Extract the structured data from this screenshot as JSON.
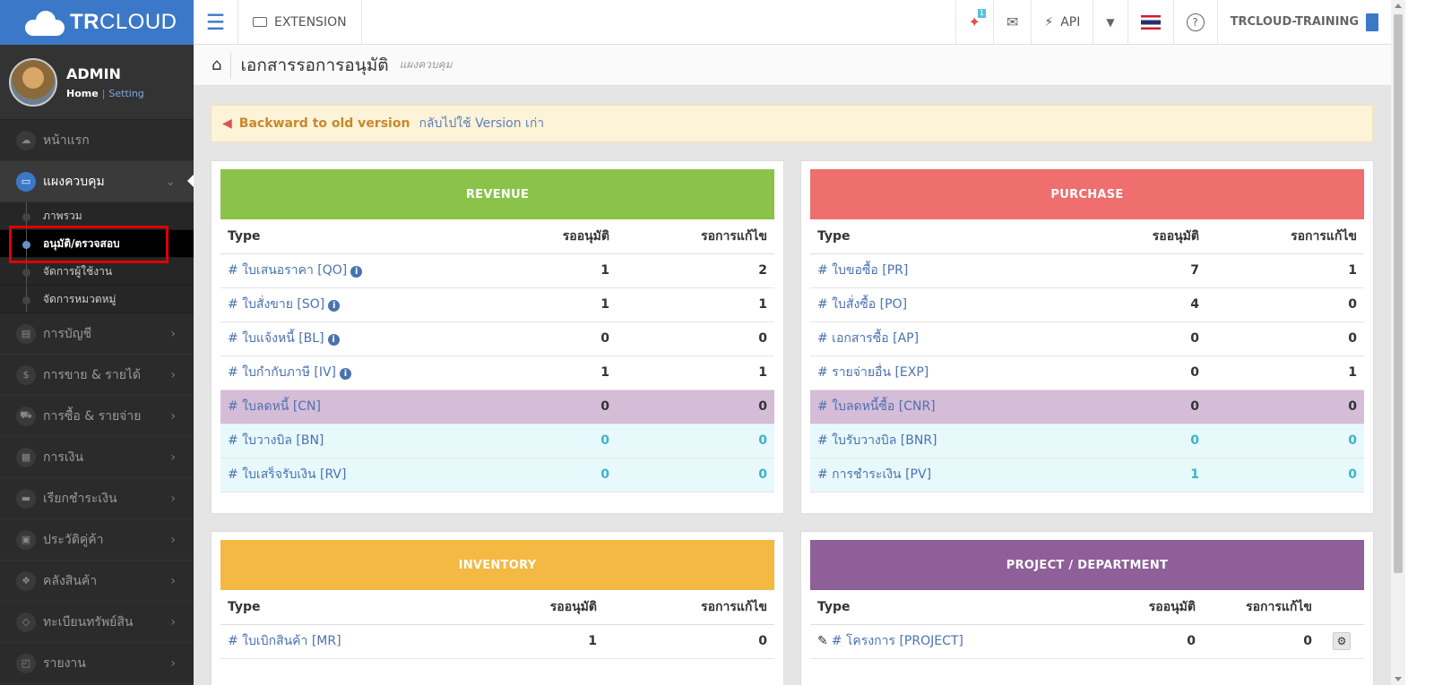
{
  "brand": {
    "logo_bold": "TR",
    "logo_light": "CLOUD"
  },
  "user": {
    "name": "ADMIN",
    "home": "Home",
    "setting": "Setting"
  },
  "sidebar": {
    "items": [
      {
        "label": "หน้าแรก"
      },
      {
        "label": "แผงควบคุม"
      },
      {
        "label": "การบัญชี"
      },
      {
        "label": "การขาย & รายได้"
      },
      {
        "label": "การซื้อ & รายจ่าย"
      },
      {
        "label": "การเงิน"
      },
      {
        "label": "เรียกชำระเงิน"
      },
      {
        "label": "ประวัติคู่ค้า"
      },
      {
        "label": "คลังสินค้า"
      },
      {
        "label": "ทะเบียนทรัพย์สิน"
      },
      {
        "label": "รายงาน"
      }
    ],
    "sub_items": [
      {
        "label": "ภาพรวม"
      },
      {
        "label": "อนุมัติ/ตรวจสอบ"
      },
      {
        "label": "จัดการผู้ใช้งาน"
      },
      {
        "label": "จัดการหมวดหมู่"
      }
    ]
  },
  "topbar": {
    "extension": "EXTENSION",
    "notif_count": "1",
    "api": "API",
    "company": "TRCLOUD-TRAINING"
  },
  "page": {
    "title": "เอกสารรอการอนุมัติ",
    "subtitle": "แผงควบคุม"
  },
  "notice": {
    "strong": "Backward to old version",
    "link": "กลับไปใช้ Version เก่า"
  },
  "columns": {
    "type": "Type",
    "pending": "รออนุมัติ",
    "revise": "รอการแก้ไข"
  },
  "revenue": {
    "title": "REVENUE",
    "rows": [
      {
        "label": "# ใบเสนอราคา [QO]",
        "pending": "1",
        "revise": "2"
      },
      {
        "label": "# ใบสั่งขาย [SO]",
        "pending": "1",
        "revise": "1"
      },
      {
        "label": "# ใบแจ้งหนี้ [BL]",
        "pending": "0",
        "revise": "0"
      },
      {
        "label": "# ใบกำกับภาษี [IV]",
        "pending": "1",
        "revise": "1"
      },
      {
        "label": "# ใบลดหนี้ [CN]",
        "pending": "0",
        "revise": "0"
      },
      {
        "label": "# ใบวางบิล [BN]",
        "pending": "0",
        "revise": "0"
      },
      {
        "label": "# ใบเสร็จรับเงิน [RV]",
        "pending": "0",
        "revise": "0"
      }
    ]
  },
  "purchase": {
    "title": "PURCHASE",
    "rows": [
      {
        "label": "# ใบขอซื้อ [PR]",
        "pending": "7",
        "revise": "1"
      },
      {
        "label": "# ใบสั่งซื้อ [PO]",
        "pending": "4",
        "revise": "0"
      },
      {
        "label": "# เอกสารซื้อ [AP]",
        "pending": "0",
        "revise": "0"
      },
      {
        "label": "# รายจ่ายอื่น [EXP]",
        "pending": "0",
        "revise": "1"
      },
      {
        "label": "# ใบลดหนี้ซื้อ [CNR]",
        "pending": "0",
        "revise": "0"
      },
      {
        "label": "# ใบรับวางบิล [BNR]",
        "pending": "0",
        "revise": "0"
      },
      {
        "label": "# การชำระเงิน [PV]",
        "pending": "1",
        "revise": "0"
      }
    ]
  },
  "inventory": {
    "title": "INVENTORY",
    "rows": [
      {
        "label": "# ใบเบิกสินค้า [MR]",
        "pending": "1",
        "revise": "0"
      }
    ]
  },
  "project": {
    "title": "PROJECT / DEPARTMENT",
    "rows": [
      {
        "label": "# โครงการ [PROJECT]",
        "pending": "0",
        "revise": "0"
      }
    ]
  }
}
